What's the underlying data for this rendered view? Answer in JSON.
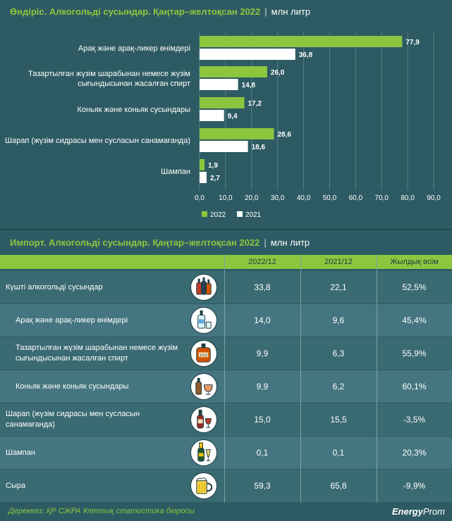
{
  "production": {
    "title": "Өндіріс. Алкогольді сусындар. Қаңтар–желтоқсан 2022",
    "unit": "млн литр"
  },
  "chart_data": {
    "type": "bar",
    "orientation": "horizontal",
    "categories": [
      [
        "Арақ және арақ-ликер өнімдері"
      ],
      [
        "Тазартылған жүзім шарабынан немесе жүзім",
        "сығындысынан жасалған спирт"
      ],
      [
        "Коньяк және коньяк сусындары"
      ],
      [
        "Шарап (жүзім сидрасы мен сусласын санамағанда)"
      ],
      [
        "Шампан"
      ]
    ],
    "series": [
      {
        "name": "2022",
        "values": [
          77.9,
          26.0,
          17.2,
          28.6,
          1.9
        ],
        "labels": [
          "77,9",
          "26,0",
          "17,2",
          "28,6",
          "1,9"
        ],
        "color": "#8cc63f"
      },
      {
        "name": "2021",
        "values": [
          36.8,
          14.8,
          9.4,
          18.6,
          2.7
        ],
        "labels": [
          "36,8",
          "14,8",
          "9,4",
          "18,6",
          "2,7"
        ],
        "color": "#ffffff"
      }
    ],
    "xlim": [
      0,
      90
    ],
    "xticks": [
      "0,0",
      "10,0",
      "20,0",
      "30,0",
      "40,0",
      "50,0",
      "60,0",
      "70,0",
      "80,0",
      "90,0"
    ],
    "grid": true,
    "legend": "bottom"
  },
  "import": {
    "title": "Импорт. Алкогольді сусындар. Қаңтар–желтоқсан 2022",
    "unit": "млн литр",
    "headers": [
      "2022/12",
      "2021/12",
      "Жылдық өсім"
    ],
    "rows": [
      {
        "name": "Күшті алкогольді сусындар",
        "indent": false,
        "icon": "bottles-icon",
        "v2022": "33,8",
        "v2021": "22,1",
        "growth": "52,5%"
      },
      {
        "name": "Арақ және арақ-ликер өнімдері",
        "indent": true,
        "icon": "vodka-bottle-icon",
        "v2022": "14,0",
        "v2021": "9,6",
        "growth": "45,4%"
      },
      {
        "name": "Тазартылған жүзім шарабынан немесе жүзім сығындысынан жасалған спирт",
        "indent": true,
        "icon": "spirit-bottle-icon",
        "v2022": "9,9",
        "v2021": "6,3",
        "growth": "55,9%"
      },
      {
        "name": "Коньяк және коньяк сусындары",
        "indent": true,
        "icon": "cognac-glass-icon",
        "v2022": "9,9",
        "v2021": "6,2",
        "growth": "60,1%"
      },
      {
        "name": "Шарап (жүзім сидрасы мен сусласын санамағанда)",
        "indent": false,
        "icon": "wine-bottle-icon",
        "v2022": "15,0",
        "v2021": "15,5",
        "growth": "-3,5%"
      },
      {
        "name": "Шампан",
        "indent": false,
        "icon": "champagne-icon",
        "v2022": "0,1",
        "v2021": "0,1",
        "growth": "20,3%"
      },
      {
        "name": "Сыра",
        "indent": false,
        "icon": "beer-mug-icon",
        "v2022": "59,3",
        "v2021": "65,8",
        "growth": "-9,9%"
      }
    ]
  },
  "footer": {
    "source": "Дереккөз: ҚР СЖРА Ұлттық статистика бюросы",
    "brand_bold": "Energy",
    "brand_rest": "Prom"
  }
}
